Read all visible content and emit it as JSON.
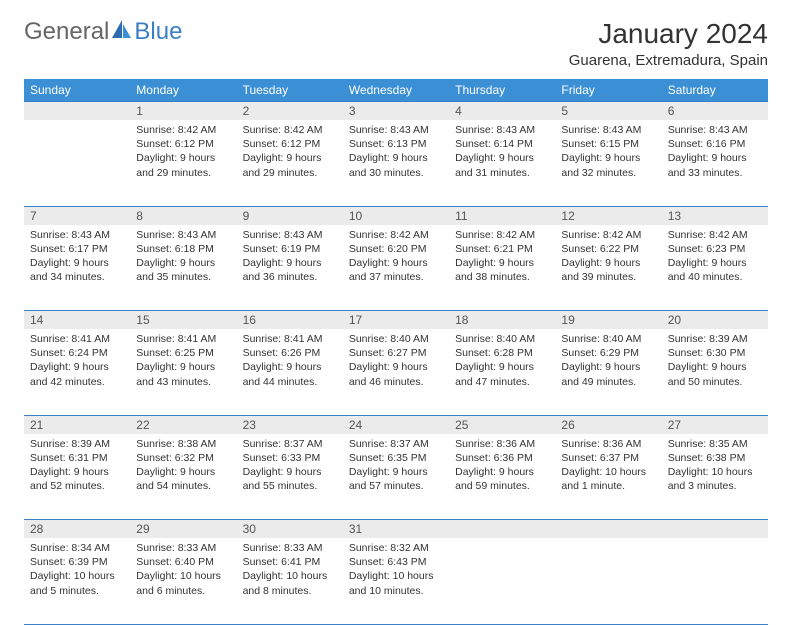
{
  "logo": {
    "text1": "General",
    "text2": "Blue"
  },
  "title": "January 2024",
  "location": "Guarena, Extremadura, Spain",
  "colors": {
    "header_bg": "#3b8fd4",
    "header_text": "#ffffff",
    "daynum_bg": "#ebebeb",
    "border": "#3b7fc4",
    "logo_gray": "#666666",
    "logo_blue": "#3b7fc4"
  },
  "day_names": [
    "Sunday",
    "Monday",
    "Tuesday",
    "Wednesday",
    "Thursday",
    "Friday",
    "Saturday"
  ],
  "weeks": [
    [
      {
        "n": "",
        "sunrise": "",
        "sunset": "",
        "daylight": ""
      },
      {
        "n": "1",
        "sunrise": "Sunrise: 8:42 AM",
        "sunset": "Sunset: 6:12 PM",
        "daylight": "Daylight: 9 hours and 29 minutes."
      },
      {
        "n": "2",
        "sunrise": "Sunrise: 8:42 AM",
        "sunset": "Sunset: 6:12 PM",
        "daylight": "Daylight: 9 hours and 29 minutes."
      },
      {
        "n": "3",
        "sunrise": "Sunrise: 8:43 AM",
        "sunset": "Sunset: 6:13 PM",
        "daylight": "Daylight: 9 hours and 30 minutes."
      },
      {
        "n": "4",
        "sunrise": "Sunrise: 8:43 AM",
        "sunset": "Sunset: 6:14 PM",
        "daylight": "Daylight: 9 hours and 31 minutes."
      },
      {
        "n": "5",
        "sunrise": "Sunrise: 8:43 AM",
        "sunset": "Sunset: 6:15 PM",
        "daylight": "Daylight: 9 hours and 32 minutes."
      },
      {
        "n": "6",
        "sunrise": "Sunrise: 8:43 AM",
        "sunset": "Sunset: 6:16 PM",
        "daylight": "Daylight: 9 hours and 33 minutes."
      }
    ],
    [
      {
        "n": "7",
        "sunrise": "Sunrise: 8:43 AM",
        "sunset": "Sunset: 6:17 PM",
        "daylight": "Daylight: 9 hours and 34 minutes."
      },
      {
        "n": "8",
        "sunrise": "Sunrise: 8:43 AM",
        "sunset": "Sunset: 6:18 PM",
        "daylight": "Daylight: 9 hours and 35 minutes."
      },
      {
        "n": "9",
        "sunrise": "Sunrise: 8:43 AM",
        "sunset": "Sunset: 6:19 PM",
        "daylight": "Daylight: 9 hours and 36 minutes."
      },
      {
        "n": "10",
        "sunrise": "Sunrise: 8:42 AM",
        "sunset": "Sunset: 6:20 PM",
        "daylight": "Daylight: 9 hours and 37 minutes."
      },
      {
        "n": "11",
        "sunrise": "Sunrise: 8:42 AM",
        "sunset": "Sunset: 6:21 PM",
        "daylight": "Daylight: 9 hours and 38 minutes."
      },
      {
        "n": "12",
        "sunrise": "Sunrise: 8:42 AM",
        "sunset": "Sunset: 6:22 PM",
        "daylight": "Daylight: 9 hours and 39 minutes."
      },
      {
        "n": "13",
        "sunrise": "Sunrise: 8:42 AM",
        "sunset": "Sunset: 6:23 PM",
        "daylight": "Daylight: 9 hours and 40 minutes."
      }
    ],
    [
      {
        "n": "14",
        "sunrise": "Sunrise: 8:41 AM",
        "sunset": "Sunset: 6:24 PM",
        "daylight": "Daylight: 9 hours and 42 minutes."
      },
      {
        "n": "15",
        "sunrise": "Sunrise: 8:41 AM",
        "sunset": "Sunset: 6:25 PM",
        "daylight": "Daylight: 9 hours and 43 minutes."
      },
      {
        "n": "16",
        "sunrise": "Sunrise: 8:41 AM",
        "sunset": "Sunset: 6:26 PM",
        "daylight": "Daylight: 9 hours and 44 minutes."
      },
      {
        "n": "17",
        "sunrise": "Sunrise: 8:40 AM",
        "sunset": "Sunset: 6:27 PM",
        "daylight": "Daylight: 9 hours and 46 minutes."
      },
      {
        "n": "18",
        "sunrise": "Sunrise: 8:40 AM",
        "sunset": "Sunset: 6:28 PM",
        "daylight": "Daylight: 9 hours and 47 minutes."
      },
      {
        "n": "19",
        "sunrise": "Sunrise: 8:40 AM",
        "sunset": "Sunset: 6:29 PM",
        "daylight": "Daylight: 9 hours and 49 minutes."
      },
      {
        "n": "20",
        "sunrise": "Sunrise: 8:39 AM",
        "sunset": "Sunset: 6:30 PM",
        "daylight": "Daylight: 9 hours and 50 minutes."
      }
    ],
    [
      {
        "n": "21",
        "sunrise": "Sunrise: 8:39 AM",
        "sunset": "Sunset: 6:31 PM",
        "daylight": "Daylight: 9 hours and 52 minutes."
      },
      {
        "n": "22",
        "sunrise": "Sunrise: 8:38 AM",
        "sunset": "Sunset: 6:32 PM",
        "daylight": "Daylight: 9 hours and 54 minutes."
      },
      {
        "n": "23",
        "sunrise": "Sunrise: 8:37 AM",
        "sunset": "Sunset: 6:33 PM",
        "daylight": "Daylight: 9 hours and 55 minutes."
      },
      {
        "n": "24",
        "sunrise": "Sunrise: 8:37 AM",
        "sunset": "Sunset: 6:35 PM",
        "daylight": "Daylight: 9 hours and 57 minutes."
      },
      {
        "n": "25",
        "sunrise": "Sunrise: 8:36 AM",
        "sunset": "Sunset: 6:36 PM",
        "daylight": "Daylight: 9 hours and 59 minutes."
      },
      {
        "n": "26",
        "sunrise": "Sunrise: 8:36 AM",
        "sunset": "Sunset: 6:37 PM",
        "daylight": "Daylight: 10 hours and 1 minute."
      },
      {
        "n": "27",
        "sunrise": "Sunrise: 8:35 AM",
        "sunset": "Sunset: 6:38 PM",
        "daylight": "Daylight: 10 hours and 3 minutes."
      }
    ],
    [
      {
        "n": "28",
        "sunrise": "Sunrise: 8:34 AM",
        "sunset": "Sunset: 6:39 PM",
        "daylight": "Daylight: 10 hours and 5 minutes."
      },
      {
        "n": "29",
        "sunrise": "Sunrise: 8:33 AM",
        "sunset": "Sunset: 6:40 PM",
        "daylight": "Daylight: 10 hours and 6 minutes."
      },
      {
        "n": "30",
        "sunrise": "Sunrise: 8:33 AM",
        "sunset": "Sunset: 6:41 PM",
        "daylight": "Daylight: 10 hours and 8 minutes."
      },
      {
        "n": "31",
        "sunrise": "Sunrise: 8:32 AM",
        "sunset": "Sunset: 6:43 PM",
        "daylight": "Daylight: 10 hours and 10 minutes."
      },
      {
        "n": "",
        "sunrise": "",
        "sunset": "",
        "daylight": ""
      },
      {
        "n": "",
        "sunrise": "",
        "sunset": "",
        "daylight": ""
      },
      {
        "n": "",
        "sunrise": "",
        "sunset": "",
        "daylight": ""
      }
    ]
  ]
}
